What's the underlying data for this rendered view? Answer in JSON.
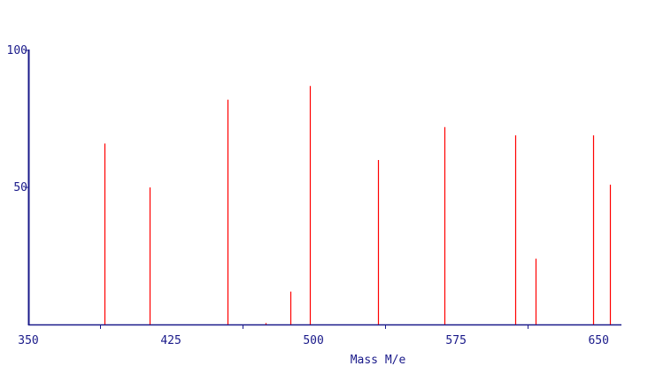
{
  "chart_data": {
    "type": "bar",
    "xlabel": "Mass M/e",
    "ylabel": "",
    "xlim": [
      350,
      662
    ],
    "ylim": [
      0,
      100
    ],
    "x_tick_labels": [
      "350",
      "425",
      "500",
      "575",
      "650"
    ],
    "x_tick_values": [
      350,
      425,
      500,
      575,
      650
    ],
    "y_tick_labels": [
      "50",
      "100"
    ],
    "y_tick_values": [
      50,
      100
    ],
    "bar_color": "#ff0000",
    "axis_color": "#1a1a8a",
    "grid": false,
    "x": [
      390,
      414,
      455,
      475,
      488,
      498,
      534,
      569,
      606,
      617,
      647,
      656
    ],
    "values": [
      66,
      50,
      82,
      0.5,
      12,
      87,
      60,
      72,
      69,
      24,
      69,
      51
    ]
  }
}
